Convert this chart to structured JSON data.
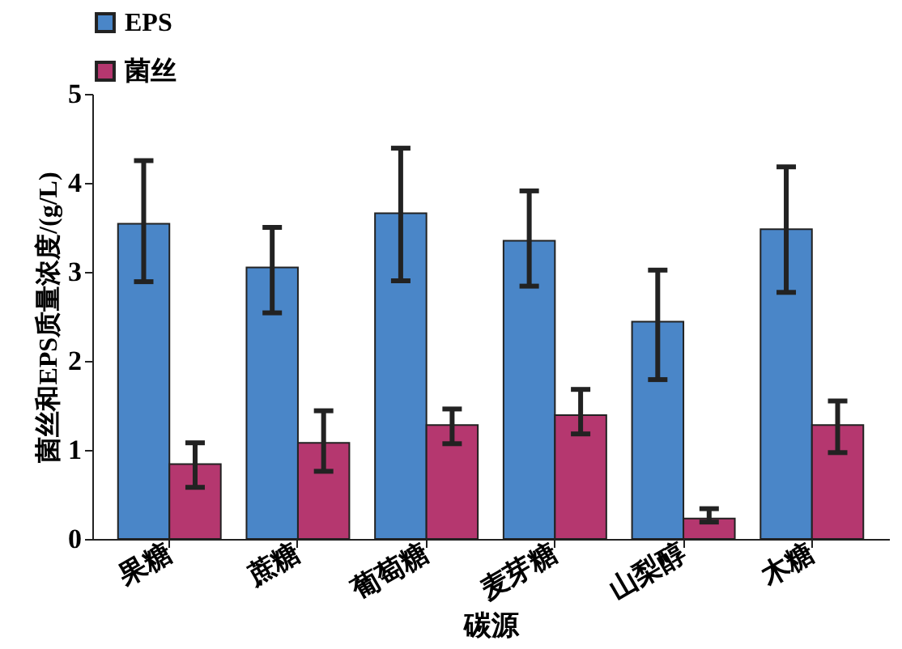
{
  "chart_data": {
    "type": "bar",
    "xlabel": "碳源",
    "ylabel": "菌丝和EPS质量浓度/(g/L)",
    "categories": [
      "果糖",
      "蔗糖",
      "葡萄糖",
      "麦芽糖",
      "山梨醇",
      "木糖"
    ],
    "series": [
      {
        "name": "EPS",
        "color": "#4a86c8",
        "values": [
          3.54,
          3.05,
          3.66,
          3.35,
          2.44,
          3.48
        ],
        "errors": [
          [
            2.89,
            4.25
          ],
          [
            2.54,
            3.5
          ],
          [
            2.9,
            4.39
          ],
          [
            2.84,
            3.91
          ],
          [
            1.79,
            3.02
          ],
          [
            2.77,
            4.18
          ]
        ]
      },
      {
        "name": "菌丝",
        "color": "#b5376f",
        "values": [
          0.84,
          1.08,
          1.28,
          1.39,
          0.23,
          1.28
        ],
        "errors": [
          [
            0.58,
            1.08
          ],
          [
            0.76,
            1.44
          ],
          [
            1.07,
            1.46
          ],
          [
            1.18,
            1.68
          ],
          [
            0.19,
            0.34
          ],
          [
            0.97,
            1.55
          ]
        ]
      }
    ],
    "ylim": [
      0,
      5
    ],
    "yticks": [
      0,
      1,
      2,
      3,
      4,
      5
    ],
    "legend": "top",
    "grid": false
  }
}
